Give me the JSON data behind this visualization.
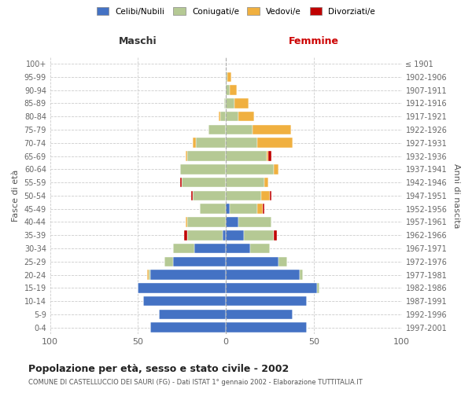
{
  "age_groups": [
    "0-4",
    "5-9",
    "10-14",
    "15-19",
    "20-24",
    "25-29",
    "30-34",
    "35-39",
    "40-44",
    "45-49",
    "50-54",
    "55-59",
    "60-64",
    "65-69",
    "70-74",
    "75-79",
    "80-84",
    "85-89",
    "90-94",
    "95-99",
    "100+"
  ],
  "birth_years": [
    "1997-2001",
    "1992-1996",
    "1987-1991",
    "1982-1986",
    "1977-1981",
    "1972-1976",
    "1967-1971",
    "1962-1966",
    "1957-1961",
    "1952-1956",
    "1947-1951",
    "1942-1946",
    "1937-1941",
    "1932-1936",
    "1927-1931",
    "1922-1926",
    "1917-1921",
    "1912-1916",
    "1907-1911",
    "1902-1906",
    "≤ 1901"
  ],
  "males_celibi": [
    43,
    38,
    47,
    50,
    43,
    30,
    18,
    2,
    0,
    0,
    0,
    0,
    0,
    0,
    0,
    0,
    0,
    0,
    0,
    0,
    0
  ],
  "males_coniugati": [
    0,
    0,
    0,
    0,
    1,
    5,
    12,
    20,
    22,
    15,
    19,
    25,
    26,
    22,
    17,
    10,
    3,
    1,
    0,
    0,
    0
  ],
  "males_vedovi": [
    0,
    0,
    0,
    0,
    1,
    0,
    0,
    0,
    1,
    0,
    0,
    0,
    0,
    1,
    2,
    0,
    1,
    0,
    0,
    0,
    0
  ],
  "males_divorziati": [
    0,
    0,
    0,
    0,
    0,
    0,
    0,
    2,
    0,
    0,
    1,
    1,
    0,
    0,
    0,
    0,
    0,
    0,
    0,
    0,
    0
  ],
  "females_nubili": [
    46,
    38,
    46,
    52,
    42,
    30,
    14,
    10,
    7,
    2,
    0,
    0,
    0,
    0,
    0,
    0,
    0,
    0,
    0,
    0,
    0
  ],
  "females_coniugate": [
    0,
    0,
    0,
    1,
    2,
    5,
    11,
    17,
    19,
    16,
    20,
    22,
    27,
    23,
    18,
    15,
    7,
    5,
    2,
    1,
    0
  ],
  "females_vedove": [
    0,
    0,
    0,
    0,
    0,
    0,
    0,
    0,
    0,
    3,
    5,
    2,
    3,
    1,
    20,
    22,
    9,
    8,
    4,
    2,
    0
  ],
  "females_divorziate": [
    0,
    0,
    0,
    0,
    0,
    0,
    0,
    2,
    0,
    1,
    1,
    0,
    0,
    2,
    0,
    0,
    0,
    0,
    0,
    0,
    0
  ],
  "color_celibi": "#4472c4",
  "color_coniugati": "#b5c994",
  "color_vedovi": "#f0b040",
  "color_divorziati": "#c00000",
  "title": "Popolazione per età, sesso e stato civile - 2002",
  "subtitle": "COMUNE DI CASTELLUCCIO DEI SAURI (FG) - Dati ISTAT 1° gennaio 2002 - Elaborazione TUTTITALIA.IT",
  "label_maschi": "Maschi",
  "label_femmine": "Femmine",
  "ylabel_left": "Fasce di età",
  "ylabel_right": "Anni di nascita",
  "legend_labels": [
    "Celibi/Nubili",
    "Coniugati/e",
    "Vedovi/e",
    "Divorziati/e"
  ],
  "xlim": 100
}
